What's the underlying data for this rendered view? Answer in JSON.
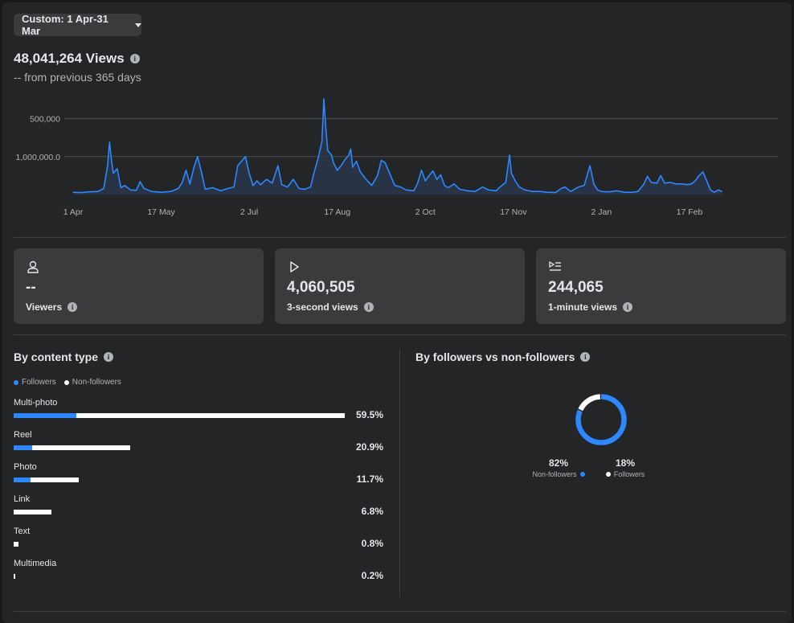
{
  "filter": {
    "label": "Custom: 1 Apr-31 Mar"
  },
  "summary": {
    "total": "48,041,264 Views",
    "comparison": "-- from previous 365 days"
  },
  "timeline": {
    "y_ticks": [
      "1,000,000.0",
      "500,000"
    ],
    "x_ticks": [
      "1 Apr",
      "17 May",
      "2 Jul",
      "17 Aug",
      "2 Oct",
      "17 Nov",
      "2 Jan",
      "17 Feb"
    ]
  },
  "chart_data": {
    "type": "area",
    "title": "",
    "xlabel": "",
    "ylabel": "",
    "ylim": [
      0,
      1250000
    ],
    "y_ticks": [
      500000,
      1000000
    ],
    "x_ticks": [
      "1 Apr",
      "17 May",
      "2 Jul",
      "17 Aug",
      "2 Oct",
      "17 Nov",
      "2 Jan",
      "17 Feb"
    ],
    "grid": true,
    "color": "#2d88ff",
    "points": [
      [
        "1 Apr",
        30000
      ],
      [
        "5 Apr",
        25000
      ],
      [
        "9 Apr",
        35000
      ],
      [
        "14 Apr",
        40000
      ],
      [
        "17 Apr",
        80000
      ],
      [
        "19 Apr",
        380000
      ],
      [
        "20 Apr",
        690000
      ],
      [
        "21 Apr",
        460000
      ],
      [
        "22 Apr",
        280000
      ],
      [
        "24 Apr",
        340000
      ],
      [
        "26 Apr",
        90000
      ],
      [
        "28 Apr",
        120000
      ],
      [
        "1 May",
        60000
      ],
      [
        "4 May",
        55000
      ],
      [
        "6 May",
        170000
      ],
      [
        "8 May",
        80000
      ],
      [
        "12 May",
        40000
      ],
      [
        "17 May",
        30000
      ],
      [
        "22 May",
        40000
      ],
      [
        "26 May",
        80000
      ],
      [
        "28 May",
        160000
      ],
      [
        "30 May",
        320000
      ],
      [
        "1 Jun",
        140000
      ],
      [
        "3 Jun",
        350000
      ],
      [
        "5 Jun",
        500000
      ],
      [
        "7 Jun",
        300000
      ],
      [
        "9 Jun",
        70000
      ],
      [
        "13 Jun",
        90000
      ],
      [
        "17 Jun",
        50000
      ],
      [
        "21 Jun",
        80000
      ],
      [
        "24 Jun",
        100000
      ],
      [
        "26 Jun",
        380000
      ],
      [
        "28 Jun",
        440000
      ],
      [
        "30 Jun",
        500000
      ],
      [
        "2 Jul",
        280000
      ],
      [
        "4 Jul",
        120000
      ],
      [
        "6 Jul",
        180000
      ],
      [
        "8 Jul",
        130000
      ],
      [
        "11 Jul",
        200000
      ],
      [
        "14 Jul",
        150000
      ],
      [
        "17 Jul",
        380000
      ],
      [
        "19 Jul",
        130000
      ],
      [
        "22 Jul",
        100000
      ],
      [
        "25 Jul",
        200000
      ],
      [
        "28 Jul",
        80000
      ],
      [
        "31 Jul",
        70000
      ],
      [
        "3 Aug",
        100000
      ],
      [
        "5 Aug",
        300000
      ],
      [
        "7 Aug",
        480000
      ],
      [
        "9 Aug",
        700000
      ],
      [
        "10 Aug",
        1260000
      ],
      [
        "11 Aug",
        880000
      ],
      [
        "12 Aug",
        580000
      ],
      [
        "14 Aug",
        520000
      ],
      [
        "15 Aug",
        420000
      ],
      [
        "17 Aug",
        320000
      ],
      [
        "19 Aug",
        380000
      ],
      [
        "21 Aug",
        460000
      ],
      [
        "23 Aug",
        520000
      ],
      [
        "24 Aug",
        600000
      ],
      [
        "25 Aug",
        360000
      ],
      [
        "27 Aug",
        440000
      ],
      [
        "29 Aug",
        300000
      ],
      [
        "1 Sep",
        200000
      ],
      [
        "4 Sep",
        120000
      ],
      [
        "7 Sep",
        250000
      ],
      [
        "9 Sep",
        450000
      ],
      [
        "11 Sep",
        420000
      ],
      [
        "13 Sep",
        300000
      ],
      [
        "16 Sep",
        120000
      ],
      [
        "19 Sep",
        100000
      ],
      [
        "22 Sep",
        60000
      ],
      [
        "26 Sep",
        50000
      ],
      [
        "28 Sep",
        150000
      ],
      [
        "30 Sep",
        320000
      ],
      [
        "2 Oct",
        180000
      ],
      [
        "4 Oct",
        250000
      ],
      [
        "6 Oct",
        310000
      ],
      [
        "8 Oct",
        200000
      ],
      [
        "10 Oct",
        260000
      ],
      [
        "12 Oct",
        120000
      ],
      [
        "14 Oct",
        90000
      ],
      [
        "17 Oct",
        140000
      ],
      [
        "20 Oct",
        70000
      ],
      [
        "24 Oct",
        50000
      ],
      [
        "28 Oct",
        40000
      ],
      [
        "1 Nov",
        100000
      ],
      [
        "4 Nov",
        60000
      ],
      [
        "8 Nov",
        50000
      ],
      [
        "10 Nov",
        100000
      ],
      [
        "13 Nov",
        160000
      ],
      [
        "15 Nov",
        520000
      ],
      [
        "16 Nov",
        280000
      ],
      [
        "18 Nov",
        180000
      ],
      [
        "20 Nov",
        100000
      ],
      [
        "23 Nov",
        60000
      ],
      [
        "27 Nov",
        40000
      ],
      [
        "1 Dec",
        40000
      ],
      [
        "5 Dec",
        30000
      ],
      [
        "9 Dec",
        25000
      ],
      [
        "12 Dec",
        80000
      ],
      [
        "14 Dec",
        100000
      ],
      [
        "17 Dec",
        40000
      ],
      [
        "21 Dec",
        100000
      ],
      [
        "24 Dec",
        120000
      ],
      [
        "27 Dec",
        380000
      ],
      [
        "29 Dec",
        140000
      ],
      [
        "31 Dec",
        60000
      ],
      [
        "2 Jan",
        40000
      ],
      [
        "6 Jan",
        35000
      ],
      [
        "10 Jan",
        50000
      ],
      [
        "14 Jan",
        30000
      ],
      [
        "18 Jan",
        30000
      ],
      [
        "21 Jan",
        40000
      ],
      [
        "24 Jan",
        130000
      ],
      [
        "26 Jan",
        240000
      ],
      [
        "28 Jan",
        160000
      ],
      [
        "31 Jan",
        150000
      ],
      [
        "2 Feb",
        250000
      ],
      [
        "4 Feb",
        150000
      ],
      [
        "7 Feb",
        160000
      ],
      [
        "10 Feb",
        140000
      ],
      [
        "13 Feb",
        140000
      ],
      [
        "16 Feb",
        130000
      ],
      [
        "18 Feb",
        140000
      ],
      [
        "20 Feb",
        180000
      ],
      [
        "22 Feb",
        250000
      ],
      [
        "24 Feb",
        300000
      ],
      [
        "26 Feb",
        180000
      ],
      [
        "28 Feb",
        60000
      ],
      [
        "2 Mar",
        30000
      ],
      [
        "4 Mar",
        60000
      ],
      [
        "6 Mar",
        40000
      ]
    ]
  },
  "metrics": [
    {
      "icon": "person-icon",
      "value": "--",
      "label": "Viewers"
    },
    {
      "icon": "play-icon",
      "value": "4,060,505",
      "label": "3-second views"
    },
    {
      "icon": "video-list-icon",
      "value": "244,065",
      "label": "1-minute views"
    }
  ],
  "content_type": {
    "title": "By content type",
    "legend": {
      "followers": "Followers",
      "non_followers": "Non-followers"
    },
    "colors": {
      "followers": "#2d88ff",
      "non_followers": "#ffffff"
    },
    "rows": [
      {
        "label": "Multi-photo",
        "percent": "59.5%",
        "total": 59.5,
        "followers_fraction": 0.19
      },
      {
        "label": "Reel",
        "percent": "20.9%",
        "total": 20.9,
        "followers_fraction": 0.16
      },
      {
        "label": "Photo",
        "percent": "11.7%",
        "total": 11.7,
        "followers_fraction": 0.26
      },
      {
        "label": "Link",
        "percent": "6.8%",
        "total": 6.8,
        "followers_fraction": 0
      },
      {
        "label": "Text",
        "percent": "0.8%",
        "total": 0.8,
        "followers_fraction": 0
      },
      {
        "label": "Multimedia",
        "percent": "0.2%",
        "total": 0.2,
        "followers_fraction": 0
      }
    ]
  },
  "followers_split": {
    "title": "By followers vs non-followers",
    "non_followers": {
      "percent": "82%",
      "label": "Non-followers",
      "value": 0.82
    },
    "followers": {
      "percent": "18%",
      "label": "Followers",
      "value": 0.18
    }
  }
}
